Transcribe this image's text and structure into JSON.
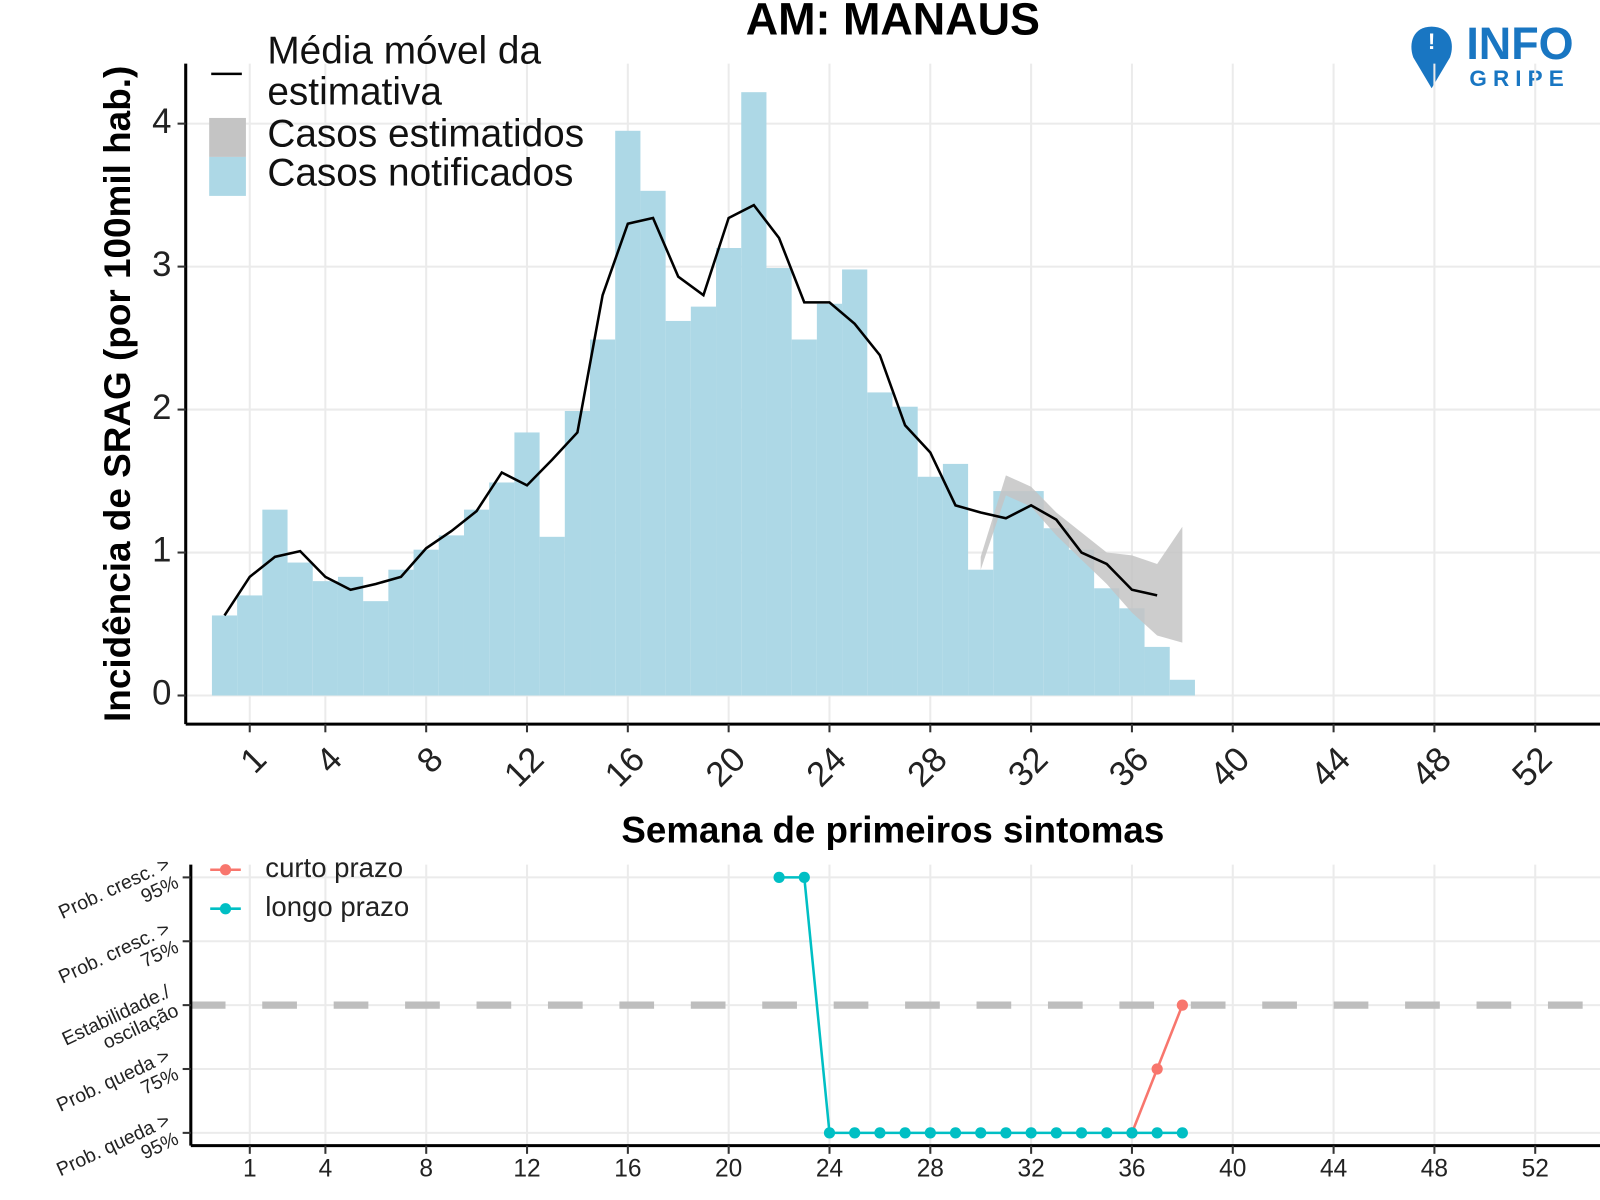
{
  "logo": [
    "INFO",
    "GRIPE"
  ],
  "chart_data": [
    {
      "type": "bar",
      "title": "AM: MANAUS",
      "x_label": "Semana de primeiros sintomas",
      "y_label": "Incidência de SRAG (por 100mil hab.)",
      "x": [
        0,
        1,
        2,
        3,
        4,
        5,
        6,
        7,
        8,
        9,
        10,
        11,
        12,
        13,
        14,
        15,
        16,
        17,
        18,
        19,
        20,
        21,
        22,
        23,
        24,
        25,
        26,
        27,
        28,
        29,
        30,
        31,
        32,
        33,
        34,
        35,
        36,
        37,
        38
      ],
      "xlim": [
        -1.54,
        54.57
      ],
      "xticks": [
        1,
        4,
        8,
        12,
        16,
        20,
        24,
        28,
        32,
        36,
        40,
        44,
        48,
        52
      ],
      "ylim": [
        -0.2,
        4.42
      ],
      "yticks": [
        0,
        1,
        2,
        3,
        4
      ],
      "grid": true,
      "series": [
        {
          "name": "Média móvel da estimativa",
          "type": "line",
          "color": "#000000",
          "values": [
            0.56,
            0.83,
            0.97,
            1.01,
            0.83,
            0.74,
            0.78,
            0.83,
            1.03,
            1.15,
            1.29,
            1.56,
            1.47,
            1.65,
            1.84,
            2.8,
            3.3,
            3.34,
            2.93,
            2.8,
            3.34,
            3.43,
            3.2,
            2.75,
            2.75,
            2.6,
            2.38,
            1.89,
            1.7,
            1.33,
            1.28,
            1.24,
            1.33,
            1.23,
            1.0,
            0.92,
            0.74,
            0.7,
            null
          ]
        },
        {
          "name": "Casos estimatidos",
          "type": "band",
          "color": "#c4c4c4",
          "lower": [
            null,
            null,
            null,
            null,
            null,
            null,
            null,
            null,
            null,
            null,
            null,
            null,
            null,
            null,
            null,
            null,
            null,
            null,
            null,
            null,
            null,
            null,
            null,
            null,
            null,
            null,
            null,
            null,
            null,
            null,
            0.88,
            1.4,
            1.32,
            1.12,
            0.95,
            0.78,
            0.58,
            0.42,
            0.37
          ],
          "upper": [
            null,
            null,
            null,
            null,
            null,
            null,
            null,
            null,
            null,
            null,
            null,
            null,
            null,
            null,
            null,
            null,
            null,
            null,
            null,
            null,
            null,
            null,
            null,
            null,
            null,
            null,
            null,
            null,
            null,
            null,
            0.97,
            1.54,
            1.46,
            1.28,
            1.14,
            1.0,
            0.98,
            0.92,
            1.18
          ]
        },
        {
          "name": "Casos notificados",
          "type": "bar",
          "color": "#add8e6",
          "values": [
            0.56,
            0.7,
            1.3,
            0.93,
            0.8,
            0.83,
            0.66,
            0.88,
            1.02,
            1.12,
            1.3,
            1.49,
            1.84,
            1.11,
            1.99,
            2.49,
            3.95,
            3.53,
            2.62,
            2.72,
            3.13,
            4.22,
            2.99,
            2.49,
            2.74,
            2.98,
            2.12,
            2.02,
            1.53,
            1.62,
            0.88,
            1.43,
            1.43,
            1.17,
            1.02,
            0.75,
            0.61,
            0.34,
            0.11
          ]
        }
      ]
    },
    {
      "type": "line",
      "xlim": [
        -1.34,
        54.57
      ],
      "xticks": [
        1,
        4,
        8,
        12,
        16,
        20,
        24,
        28,
        32,
        36,
        40,
        44,
        48,
        52
      ],
      "ylim": [
        -2.2,
        2.2
      ],
      "yticks": [
        {
          "value": -2,
          "label": "Prob. queda > 95%"
        },
        {
          "value": -1,
          "label": "Prob. queda > 75%"
        },
        {
          "value": 0,
          "label": "Estabilidade./ oscilação"
        },
        {
          "value": 1,
          "label": "Prob. cresc. > 75%"
        },
        {
          "value": 2,
          "label": "Prob. cresc. > 95%"
        }
      ],
      "grid": true,
      "hline": 0,
      "series": [
        {
          "name": "curto prazo",
          "color": "#f8766d",
          "x": [
            36,
            37,
            38
          ],
          "values": [
            -2,
            -1,
            0
          ]
        },
        {
          "name": "longo prazo",
          "color": "#00bfc4",
          "x": [
            22,
            23,
            24,
            25,
            26,
            27,
            28,
            29,
            30,
            31,
            32,
            33,
            34,
            35,
            36,
            37,
            38
          ],
          "values": [
            2,
            2,
            -2,
            -2,
            -2,
            -2,
            -2,
            -2,
            -2,
            -2,
            -2,
            -2,
            -2,
            -2,
            -2,
            -2,
            -2
          ]
        }
      ]
    }
  ]
}
